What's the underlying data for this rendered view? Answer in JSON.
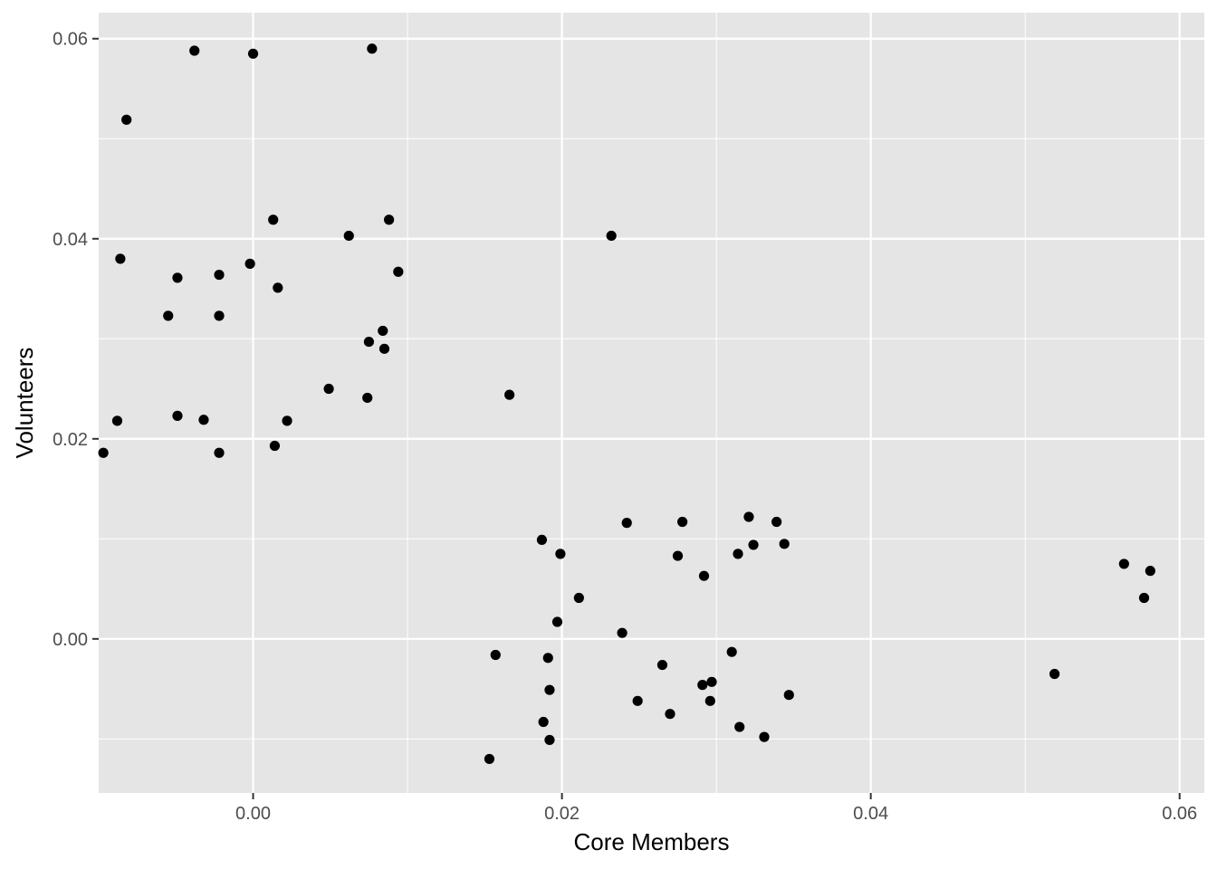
{
  "chart_data": {
    "type": "scatter",
    "title": "",
    "xlabel": "Core Members",
    "ylabel": "Volunteers",
    "xlim": [
      -0.01,
      0.0616
    ],
    "ylim": [
      -0.0154,
      0.0626
    ],
    "grid": true,
    "legend": "none",
    "x_ticks": [
      0.0,
      0.02,
      0.04,
      0.06
    ],
    "x_tick_labels": [
      "0.00",
      "0.02",
      "0.04",
      "0.06"
    ],
    "y_ticks": [
      0.0,
      0.02,
      0.04,
      0.06
    ],
    "y_tick_labels": [
      "0.00",
      "0.02",
      "0.04",
      "0.06"
    ],
    "colors": {
      "panel": "#e5e5e5",
      "grid": "#ffffff",
      "point": "#000000",
      "tick": "#333333"
    },
    "points": [
      {
        "x": -0.0038,
        "y": 0.0588
      },
      {
        "x": 0.0,
        "y": 0.0585
      },
      {
        "x": 0.0077,
        "y": 0.059
      },
      {
        "x": -0.0082,
        "y": 0.0519
      },
      {
        "x": 0.0013,
        "y": 0.0419
      },
      {
        "x": 0.0088,
        "y": 0.0419
      },
      {
        "x": 0.0062,
        "y": 0.0403
      },
      {
        "x": -0.0086,
        "y": 0.038
      },
      {
        "x": -0.0002,
        "y": 0.0375
      },
      {
        "x": -0.0022,
        "y": 0.0364
      },
      {
        "x": -0.0049,
        "y": 0.0361
      },
      {
        "x": 0.0094,
        "y": 0.0367
      },
      {
        "x": 0.0016,
        "y": 0.0351
      },
      {
        "x": -0.0055,
        "y": 0.0323
      },
      {
        "x": -0.0022,
        "y": 0.0323
      },
      {
        "x": 0.0084,
        "y": 0.0308
      },
      {
        "x": 0.0075,
        "y": 0.0297
      },
      {
        "x": 0.0085,
        "y": 0.029
      },
      {
        "x": 0.0049,
        "y": 0.025
      },
      {
        "x": 0.0074,
        "y": 0.0241
      },
      {
        "x": -0.0088,
        "y": 0.0218
      },
      {
        "x": -0.0049,
        "y": 0.0223
      },
      {
        "x": -0.0032,
        "y": 0.0219
      },
      {
        "x": 0.0022,
        "y": 0.0218
      },
      {
        "x": 0.0014,
        "y": 0.0193
      },
      {
        "x": -0.0022,
        "y": 0.0186
      },
      {
        "x": -0.0097,
        "y": 0.0186
      },
      {
        "x": 0.0232,
        "y": 0.0403
      },
      {
        "x": 0.0166,
        "y": 0.0244
      },
      {
        "x": 0.0187,
        "y": 0.0099
      },
      {
        "x": 0.0242,
        "y": 0.0116
      },
      {
        "x": 0.0278,
        "y": 0.0117
      },
      {
        "x": 0.0321,
        "y": 0.0122
      },
      {
        "x": 0.0339,
        "y": 0.0117
      },
      {
        "x": 0.0199,
        "y": 0.0085
      },
      {
        "x": 0.0275,
        "y": 0.0083
      },
      {
        "x": 0.0314,
        "y": 0.0085
      },
      {
        "x": 0.0324,
        "y": 0.0094
      },
      {
        "x": 0.0344,
        "y": 0.0095
      },
      {
        "x": 0.0292,
        "y": 0.0063
      },
      {
        "x": 0.0211,
        "y": 0.0041
      },
      {
        "x": 0.0197,
        "y": 0.0017
      },
      {
        "x": 0.0239,
        "y": 0.0006
      },
      {
        "x": 0.0157,
        "y": -0.0016
      },
      {
        "x": 0.0191,
        "y": -0.0019
      },
      {
        "x": 0.031,
        "y": -0.0013
      },
      {
        "x": 0.0265,
        "y": -0.0026
      },
      {
        "x": 0.0192,
        "y": -0.0051
      },
      {
        "x": 0.0291,
        "y": -0.0046
      },
      {
        "x": 0.0297,
        "y": -0.0043
      },
      {
        "x": 0.0249,
        "y": -0.0062
      },
      {
        "x": 0.0296,
        "y": -0.0062
      },
      {
        "x": 0.0347,
        "y": -0.0056
      },
      {
        "x": 0.027,
        "y": -0.0075
      },
      {
        "x": 0.0188,
        "y": -0.0083
      },
      {
        "x": 0.0315,
        "y": -0.0088
      },
      {
        "x": 0.0192,
        "y": -0.0101
      },
      {
        "x": 0.0331,
        "y": -0.0098
      },
      {
        "x": 0.0153,
        "y": -0.012
      },
      {
        "x": 0.0519,
        "y": -0.0035
      },
      {
        "x": 0.0564,
        "y": 0.0075
      },
      {
        "x": 0.0581,
        "y": 0.0068
      },
      {
        "x": 0.0577,
        "y": 0.0041
      }
    ]
  }
}
